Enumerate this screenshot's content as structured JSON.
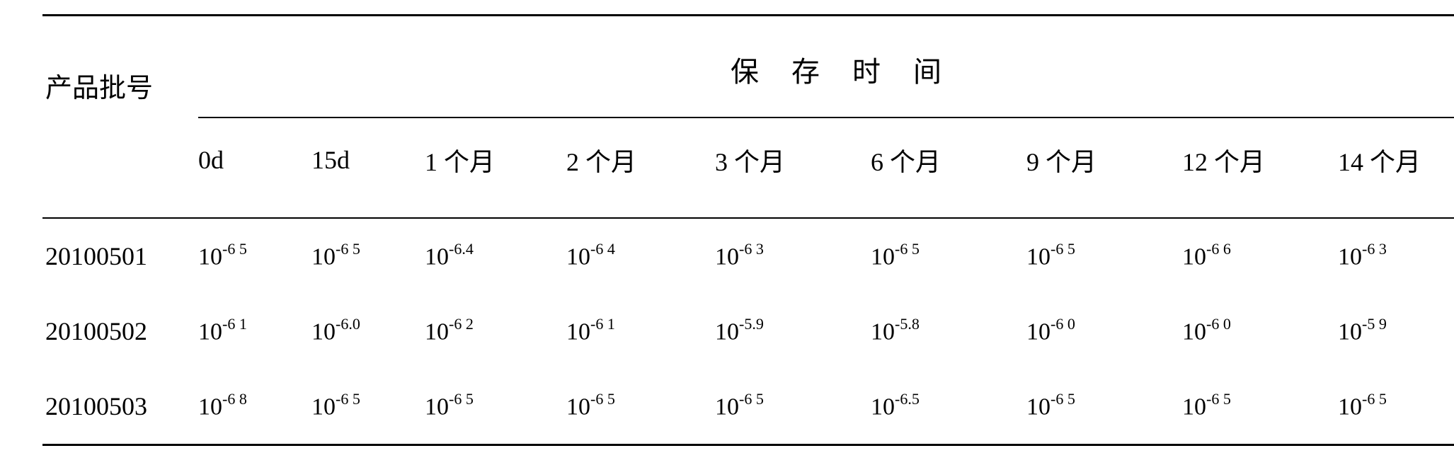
{
  "table": {
    "type": "table",
    "row_header_label": "产品批号",
    "spanner_label": "保 存 时 间",
    "time_columns": [
      "0d",
      "15d",
      "1 个月",
      "2 个月",
      "3 个月",
      "6 个月",
      "9 个月",
      "12 个月",
      "14 个月"
    ],
    "rows": [
      {
        "batch": "20100501",
        "values": [
          {
            "base": "10",
            "exp": "-6 5"
          },
          {
            "base": "10",
            "exp": "-6 5"
          },
          {
            "base": "10",
            "exp": "-6.4"
          },
          {
            "base": "10",
            "exp": "-6 4"
          },
          {
            "base": "10",
            "exp": "-6  3"
          },
          {
            "base": "10",
            "exp": "-6 5"
          },
          {
            "base": "10",
            "exp": "-6 5"
          },
          {
            "base": "10",
            "exp": "-6 6"
          },
          {
            "base": "10",
            "exp": "-6 3"
          }
        ]
      },
      {
        "batch": "20100502",
        "values": [
          {
            "base": "10",
            "exp": "-6 1"
          },
          {
            "base": "10",
            "exp": "-6.0"
          },
          {
            "base": "10",
            "exp": "-6 2"
          },
          {
            "base": "10",
            "exp": "-6 1"
          },
          {
            "base": "10",
            "exp": "-5.9"
          },
          {
            "base": "10",
            "exp": "-5.8"
          },
          {
            "base": "10",
            "exp": "-6 0"
          },
          {
            "base": "10",
            "exp": "-6 0"
          },
          {
            "base": "10",
            "exp": "-5 9"
          }
        ]
      },
      {
        "batch": "20100503",
        "values": [
          {
            "base": "10",
            "exp": "-6 8"
          },
          {
            "base": "10",
            "exp": "-6 5"
          },
          {
            "base": "10",
            "exp": "-6 5"
          },
          {
            "base": "10",
            "exp": "-6 5"
          },
          {
            "base": "10",
            "exp": "-6 5"
          },
          {
            "base": "10",
            "exp": "-6.5"
          },
          {
            "base": "10",
            "exp": "-6 5"
          },
          {
            "base": "10",
            "exp": "-6 5"
          },
          {
            "base": "10",
            "exp": "-6 5"
          }
        ]
      }
    ],
    "colors": {
      "text": "#000000",
      "background": "#ffffff",
      "rule": "#000000"
    },
    "fontsize": {
      "header": 38,
      "subhead": 36,
      "body": 34,
      "sup": 22
    }
  }
}
